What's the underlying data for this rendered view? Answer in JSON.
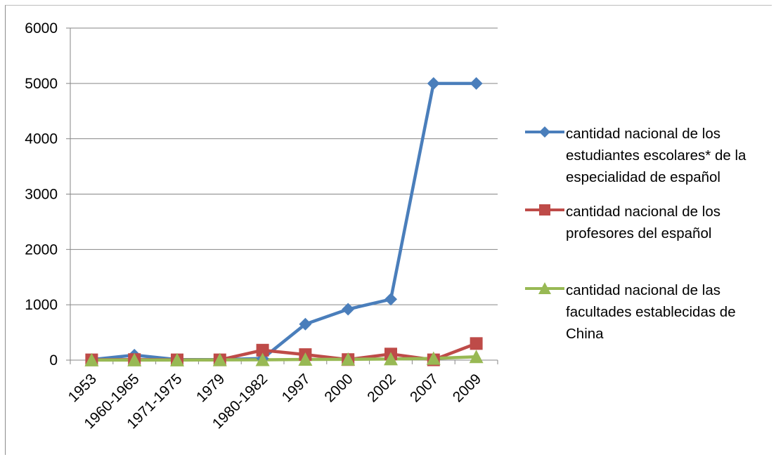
{
  "chart_data": {
    "type": "line",
    "categories": [
      "1953",
      "1960-1965",
      "1971-1975",
      "1979",
      "1980-1982",
      "1997",
      "2000",
      "2002",
      "2007",
      "2009"
    ],
    "ylim": [
      0,
      6000
    ],
    "yticks": [
      "0",
      "1000",
      "2000",
      "3000",
      "4000",
      "5000",
      "6000"
    ],
    "grid": true,
    "legend_position": "right",
    "series": [
      {
        "name": "cantidad nacional de los estudiantes escolares* de la especialidad de español",
        "color": "#4a7ebb",
        "marker": "diamond",
        "values": [
          10,
          90,
          10,
          10,
          30,
          650,
          920,
          1100,
          5000,
          5000
        ]
      },
      {
        "name": "cantidad nacional de los profesores del español",
        "color": "#be4b48",
        "marker": "square",
        "values": [
          5,
          10,
          5,
          5,
          180,
          100,
          10,
          110,
          5,
          300
        ]
      },
      {
        "name": "cantidad nacional de las facultades establecidas de China",
        "color": "#98b954",
        "marker": "triangle",
        "values": [
          1,
          2,
          2,
          4,
          6,
          12,
          15,
          20,
          30,
          60
        ]
      }
    ]
  }
}
